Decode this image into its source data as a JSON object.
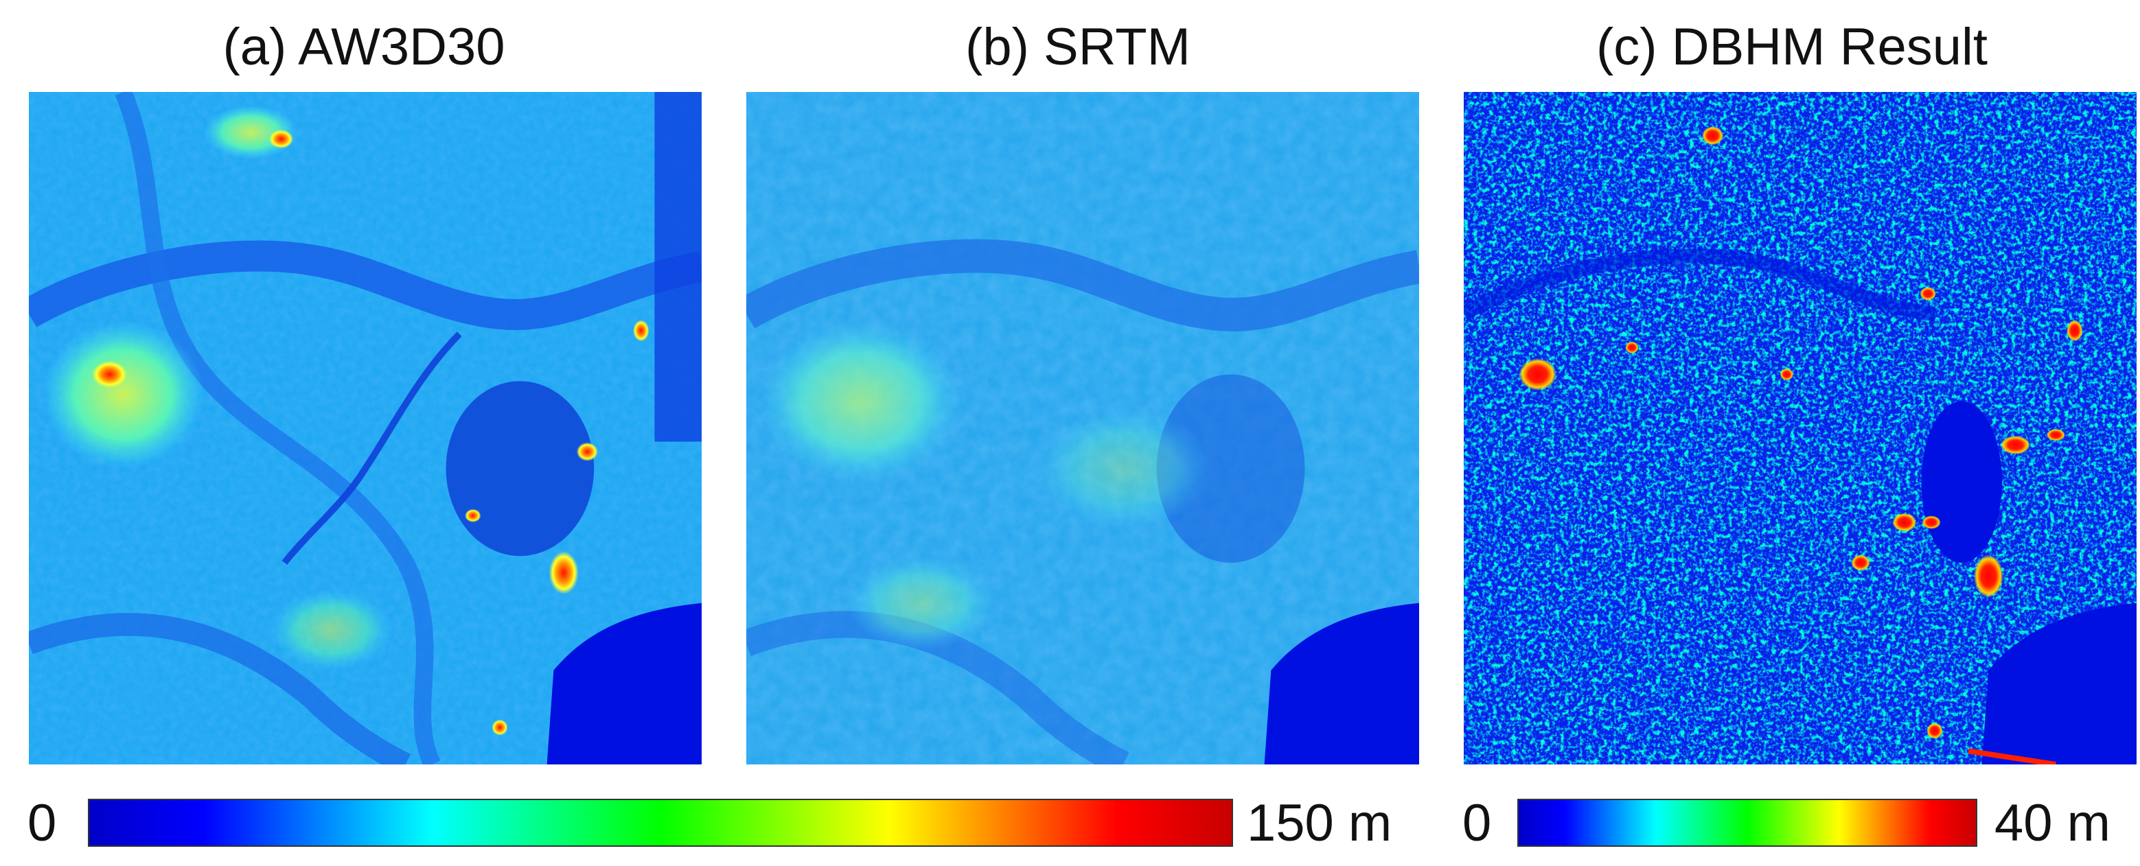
{
  "panels": [
    {
      "key": "a",
      "title": "(a) AW3D30"
    },
    {
      "key": "b",
      "title": "(b) SRTM"
    },
    {
      "key": "c",
      "title": "(c) DBHM Result"
    }
  ],
  "colorbars": [
    {
      "min_label": "0",
      "max_label": "150 m",
      "min": 0,
      "max": 150,
      "unit": "m",
      "colormap": "jet"
    },
    {
      "min_label": "0",
      "max_label": "40 m",
      "min": 0,
      "max": 40,
      "unit": "m",
      "colormap": "jet"
    }
  ],
  "colors": {
    "jet": [
      "#0000c8",
      "#0000ff",
      "#0080ff",
      "#00ffff",
      "#00ff80",
      "#00ff00",
      "#80ff00",
      "#ffff00",
      "#ff8000",
      "#ff0000",
      "#c80000"
    ],
    "water": "#0010e0"
  }
}
